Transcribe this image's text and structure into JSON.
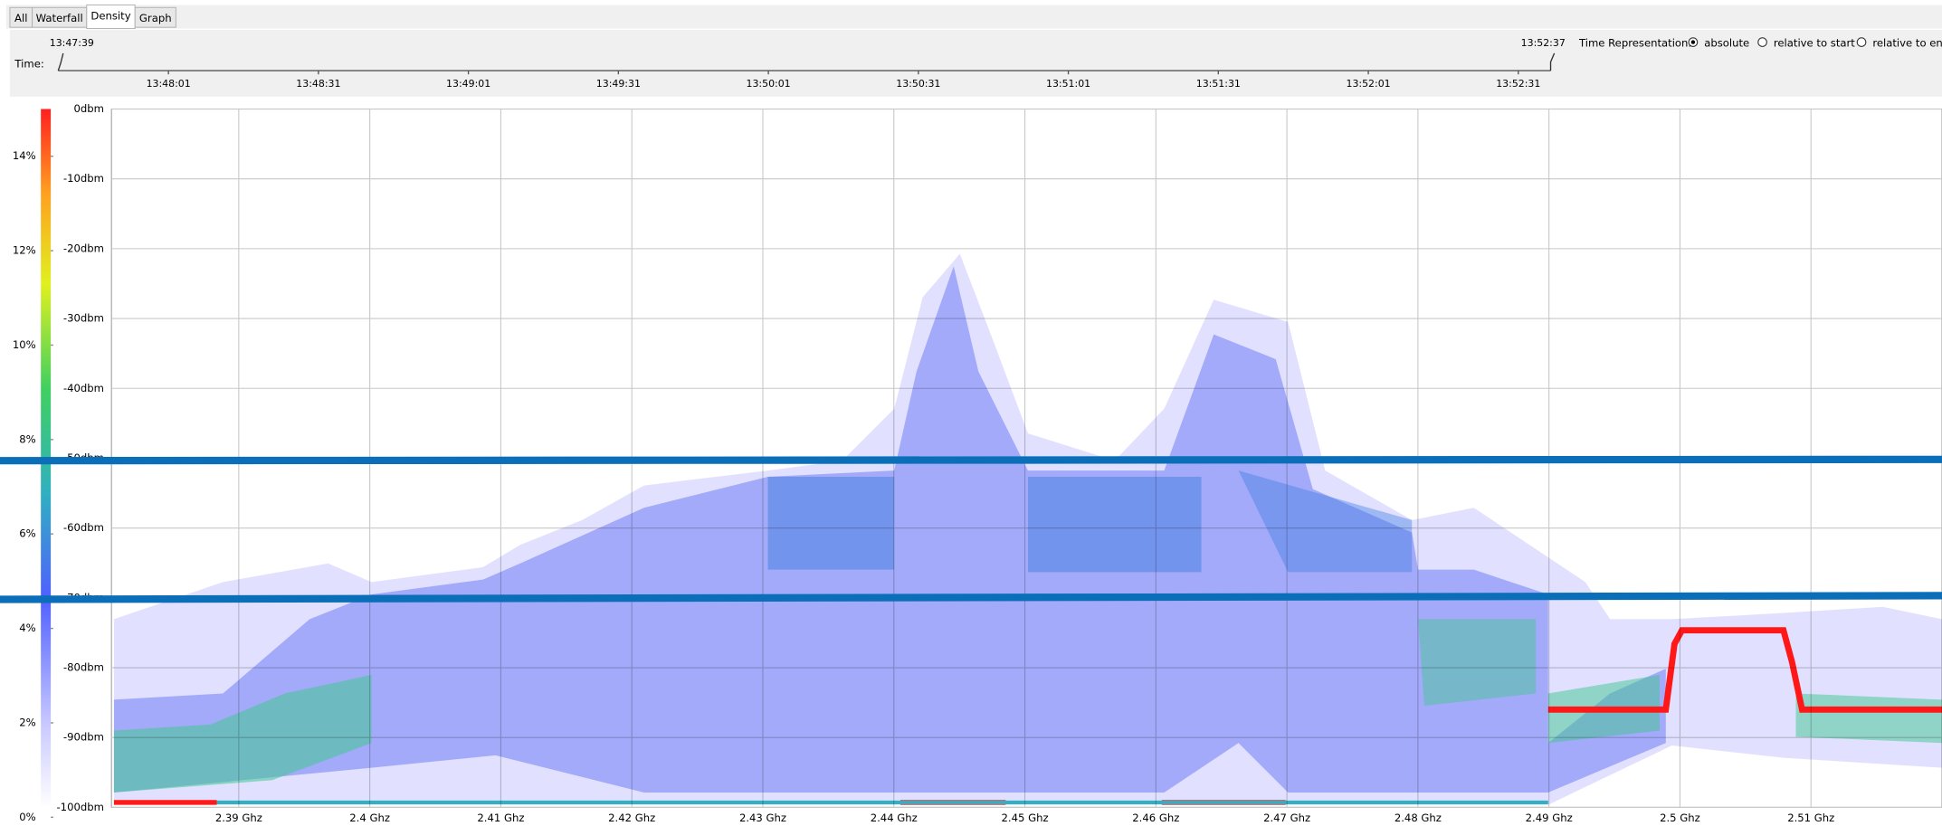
{
  "tabs": [
    "All",
    "Waterfall",
    "Density",
    "Graph"
  ],
  "active_tab": 2,
  "time_panel": {
    "label": "Time:",
    "start": "13:47:39",
    "end": "13:52:37",
    "ticks": [
      "13:48:01",
      "13:48:31",
      "13:49:01",
      "13:49:31",
      "13:50:01",
      "13:50:31",
      "13:51:01",
      "13:51:31",
      "13:52:01",
      "13:52:31"
    ]
  },
  "time_representation": {
    "label": "Time Representation:",
    "options": [
      "absolute",
      "relative to start",
      "relative to end"
    ],
    "selected": 0
  },
  "chart_data": {
    "type": "density",
    "grid": true,
    "xlim": [
      2.38,
      2.52
    ],
    "xticks": [
      {
        "value": 2.39,
        "label": "2.39 Ghz"
      },
      {
        "value": 2.4,
        "label": "2.4 Ghz"
      },
      {
        "value": 2.41,
        "label": "2.41 Ghz"
      },
      {
        "value": 2.42,
        "label": "2.42 Ghz"
      },
      {
        "value": 2.43,
        "label": "2.43 Ghz"
      },
      {
        "value": 2.44,
        "label": "2.44 Ghz"
      },
      {
        "value": 2.45,
        "label": "2.45 Ghz"
      },
      {
        "value": 2.46,
        "label": "2.46 Ghz"
      },
      {
        "value": 2.47,
        "label": "2.47 Ghz"
      },
      {
        "value": 2.48,
        "label": "2.48 Ghz"
      },
      {
        "value": 2.49,
        "label": "2.49 Ghz"
      },
      {
        "value": 2.5,
        "label": "2.5 Ghz"
      },
      {
        "value": 2.51,
        "label": "2.51 Ghz"
      }
    ],
    "ylim": [
      -100,
      0
    ],
    "yticks": [
      {
        "value": 0,
        "label": "0dbm"
      },
      {
        "value": -10,
        "label": "-10dbm"
      },
      {
        "value": -20,
        "label": "-20dbm"
      },
      {
        "value": -30,
        "label": "-30dbm"
      },
      {
        "value": -40,
        "label": "-40dbm"
      },
      {
        "value": -50,
        "label": "-50dbm"
      },
      {
        "value": -60,
        "label": "-60dbm"
      },
      {
        "value": -70,
        "label": "-70dbm"
      },
      {
        "value": -80,
        "label": "-80dbm"
      },
      {
        "value": -90,
        "label": "-90dbm"
      },
      {
        "value": -100,
        "label": "-100dbm"
      }
    ],
    "colorbar": {
      "lim": [
        0,
        15
      ],
      "ticks": [
        {
          "value": 0,
          "label": "0%"
        },
        {
          "value": 2,
          "label": "2%"
        },
        {
          "value": 4,
          "label": "4%"
        },
        {
          "value": 6,
          "label": "6%"
        },
        {
          "value": 8,
          "label": "8%"
        },
        {
          "value": 10,
          "label": "10%"
        },
        {
          "value": 12,
          "label": "12%"
        },
        {
          "value": 14,
          "label": "14%"
        }
      ]
    }
  }
}
